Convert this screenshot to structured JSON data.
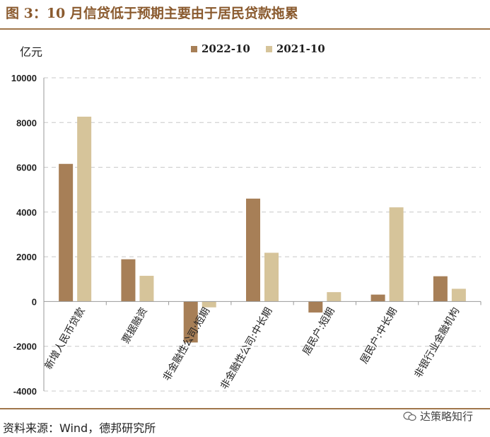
{
  "figure": {
    "title": "图 3：10 月信贷低于预期主要由于居民贷款拖累",
    "unit_label": "亿元",
    "source": "资料来源：Wind，德邦研究所",
    "watermark": "达策略知行",
    "watermark_icon": "wechat-logo-icon"
  },
  "colors": {
    "series_2022": "#a77f57",
    "series_2021": "#d6c49a",
    "rule": "#a0764a",
    "title": "#8a5a2e",
    "grid": "#c8c8c8"
  },
  "chart_data": {
    "type": "bar",
    "categories": [
      "新增人民币贷款",
      "票据融资",
      "非金融性公司:短期",
      "非金融性公司:中长期",
      "居民户:短期",
      "居民户:中长期",
      "非银行业金融机构"
    ],
    "series": [
      {
        "name": "2022-10",
        "values": [
          6152,
          1890,
          -1830,
          4600,
          -490,
          310,
          1130
        ]
      },
      {
        "name": "2021-10",
        "values": [
          8262,
          1150,
          -260,
          2180,
          420,
          4210,
          570
        ]
      }
    ],
    "ylim": [
      -4000,
      10000
    ],
    "yticks": [
      "10000",
      "8000",
      "6000",
      "4000",
      "2000",
      "0",
      "-2000",
      "-4000"
    ],
    "ytick_values": [
      10000,
      8000,
      6000,
      4000,
      2000,
      0,
      -2000,
      -4000
    ],
    "grid": true,
    "legend_position": "top-center"
  }
}
